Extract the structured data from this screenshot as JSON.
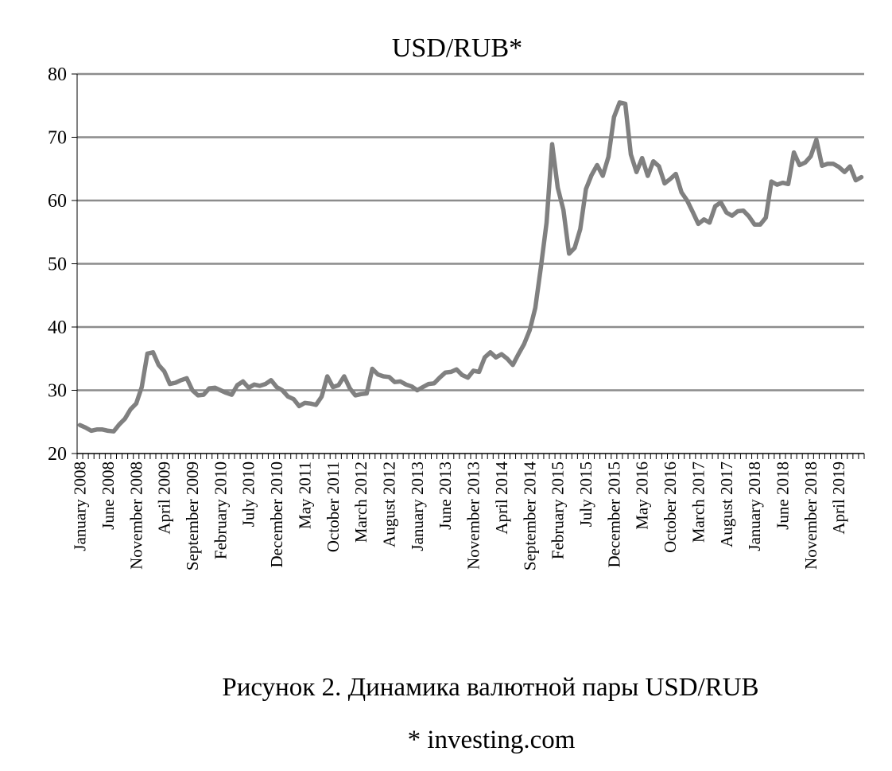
{
  "chart_data": {
    "type": "line",
    "title": "USD/RUB*",
    "xlabel": "",
    "ylabel": "",
    "ylim": [
      20,
      80
    ],
    "yticks": [
      20,
      30,
      40,
      50,
      60,
      70,
      80
    ],
    "grid": true,
    "legend": "none",
    "line_color": "#808080",
    "grid_color": "#8c8c8c",
    "x_tick_labels": [
      "January 2008",
      "June 2008",
      "November 2008",
      "April 2009",
      "September 2009",
      "February 2010",
      "July 2010",
      "December 2010",
      "May 2011",
      "October 2011",
      "March 2012",
      "August 2012",
      "January 2013",
      "June 2013",
      "November 2013",
      "April 2014",
      "September 2014",
      "February 2015",
      "July 2015",
      "December 2015",
      "May 2016",
      "October 2016",
      "March 2017",
      "August 2017",
      "January 2018",
      "June 2018",
      "November 2018",
      "April 2019"
    ],
    "x_start": "2008-01",
    "x_end": "2019-09",
    "series": [
      {
        "values": [
          24.5,
          24.1,
          23.6,
          23.8,
          23.8,
          23.6,
          23.5,
          24.6,
          25.5,
          27.0,
          27.9,
          30.5,
          35.8,
          36.0,
          34.0,
          33.0,
          31.0,
          31.2,
          31.6,
          31.9,
          30.0,
          29.2,
          29.3,
          30.3,
          30.4,
          30.0,
          29.6,
          29.3,
          30.8,
          31.4,
          30.4,
          30.9,
          30.7,
          31.0,
          31.6,
          30.5,
          30.0,
          29.0,
          28.6,
          27.5,
          28.0,
          27.9,
          27.7,
          29.0,
          32.2,
          30.5,
          30.8,
          32.2,
          30.3,
          29.2,
          29.4,
          29.5,
          33.4,
          32.5,
          32.2,
          32.1,
          31.3,
          31.4,
          30.9,
          30.6,
          30.0,
          30.5,
          31.0,
          31.1,
          32.0,
          32.8,
          32.9,
          33.3,
          32.4,
          32.0,
          33.1,
          32.9,
          35.2,
          36.0,
          35.2,
          35.7,
          35.0,
          34.0,
          35.7,
          37.3,
          39.5,
          43.0,
          49.5,
          56.5,
          68.9,
          62.0,
          58.5,
          51.6,
          52.5,
          55.5,
          61.8,
          64.0,
          65.6,
          63.9,
          66.9,
          73.2,
          75.5,
          75.3,
          67.3,
          64.5,
          66.7,
          63.9,
          66.2,
          65.4,
          62.7,
          63.4,
          64.2,
          61.3,
          60.0,
          58.2,
          56.3,
          57.0,
          56.5,
          59.1,
          59.7,
          58.1,
          57.6,
          58.3,
          58.4,
          57.5,
          56.2,
          56.2,
          57.3,
          63.0,
          62.5,
          62.8,
          62.6,
          67.6,
          65.6,
          66.0,
          67.0,
          69.6,
          65.5,
          65.8,
          65.8,
          65.3,
          64.5,
          65.4,
          63.2,
          63.7
        ]
      }
    ]
  },
  "caption": "Рисунок 2. Динамика валютной пары USD/RUB",
  "source": "* investing.com"
}
